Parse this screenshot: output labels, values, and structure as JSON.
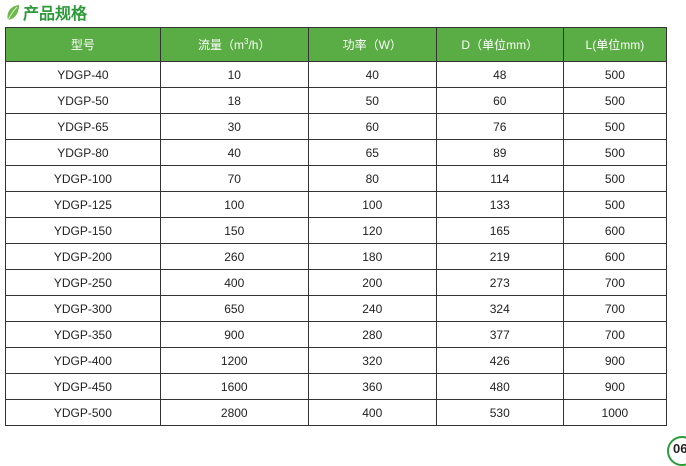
{
  "title": "产品规格",
  "headers": {
    "model": "型号",
    "flow_pre": "流量（m",
    "flow_sup": "3",
    "flow_post": "/h）",
    "power": "功率（W）",
    "d": "D（单位mm）",
    "l": "L(单位mm)"
  },
  "rows": [
    [
      "YDGP-40",
      "10",
      "40",
      "48",
      "500"
    ],
    [
      "YDGP-50",
      "18",
      "50",
      "60",
      "500"
    ],
    [
      "YDGP-65",
      "30",
      "60",
      "76",
      "500"
    ],
    [
      "YDGP-80",
      "40",
      "65",
      "89",
      "500"
    ],
    [
      "YDGP-100",
      "70",
      "80",
      "114",
      "500"
    ],
    [
      "YDGP-125",
      "100",
      "100",
      "133",
      "500"
    ],
    [
      "YDGP-150",
      "150",
      "120",
      "165",
      "600"
    ],
    [
      "YDGP-200",
      "260",
      "180",
      "219",
      "600"
    ],
    [
      "YDGP-250",
      "400",
      "200",
      "273",
      "700"
    ],
    [
      "YDGP-300",
      "650",
      "240",
      "324",
      "700"
    ],
    [
      "YDGP-350",
      "900",
      "280",
      "377",
      "700"
    ],
    [
      "YDGP-400",
      "1200",
      "320",
      "426",
      "900"
    ],
    [
      "YDGP-450",
      "1600",
      "360",
      "480",
      "900"
    ],
    [
      "YDGP-500",
      "2800",
      "400",
      "530",
      "1000"
    ]
  ],
  "page_number": "06",
  "colors": {
    "header_bg": "#5aac44",
    "title": "#2e9a3a"
  }
}
